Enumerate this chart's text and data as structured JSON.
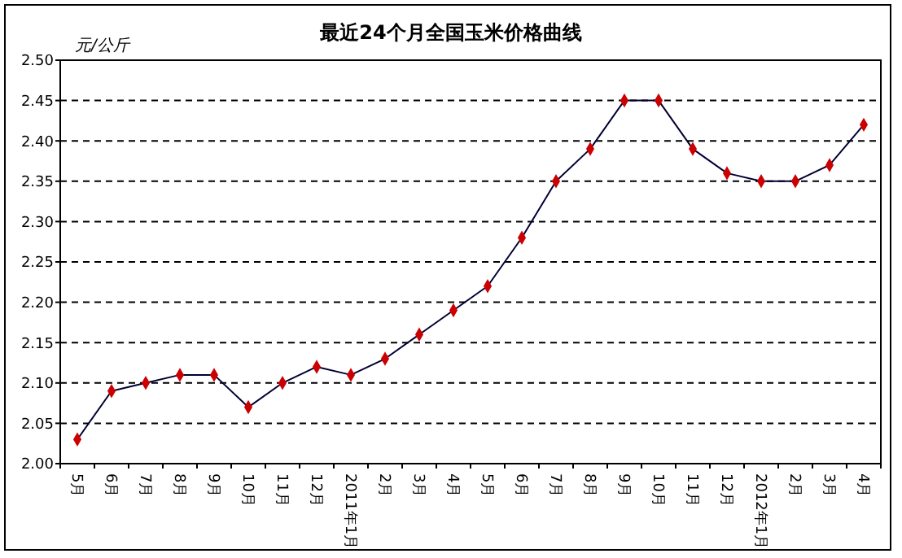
{
  "chart_data": {
    "type": "line",
    "title": "最近24个月全国玉米价格曲线",
    "ylabel": "元/公斤",
    "categories": [
      "5月",
      "6月",
      "7月",
      "8月",
      "9月",
      "10月",
      "11月",
      "12月",
      "2011年1月",
      "2月",
      "3月",
      "4月",
      "5月",
      "6月",
      "7月",
      "8月",
      "9月",
      "10月",
      "11月",
      "12月",
      "2012年1月",
      "2月",
      "3月",
      "4月"
    ],
    "series": [
      {
        "color": "#cc0000",
        "values": [
          2.03,
          2.09,
          2.1,
          2.11,
          2.11,
          2.07,
          2.1,
          2.12,
          2.11,
          2.13,
          2.16,
          2.19,
          2.22,
          2.28,
          2.35,
          2.39,
          2.45,
          2.45,
          2.39,
          2.36,
          2.35,
          2.35,
          2.37,
          2.42
        ]
      }
    ],
    "ylim": [
      2.0,
      2.5
    ],
    "yticks": [
      {
        "value": 2.0,
        "label": "2.00"
      },
      {
        "value": 2.05,
        "label": "2.05"
      },
      {
        "value": 2.1,
        "label": "2.10"
      },
      {
        "value": 2.15,
        "label": "2.15"
      },
      {
        "value": 2.2,
        "label": "2.20"
      },
      {
        "value": 2.25,
        "label": "2.25"
      },
      {
        "value": 2.3,
        "label": "2.30"
      },
      {
        "value": 2.35,
        "label": "2.35"
      },
      {
        "value": 2.4,
        "label": "2.40"
      },
      {
        "value": 2.45,
        "label": "2.45"
      },
      {
        "value": 2.5,
        "label": "2.50"
      }
    ],
    "grid": "y",
    "marker": "diamond",
    "line_style": "solid"
  }
}
